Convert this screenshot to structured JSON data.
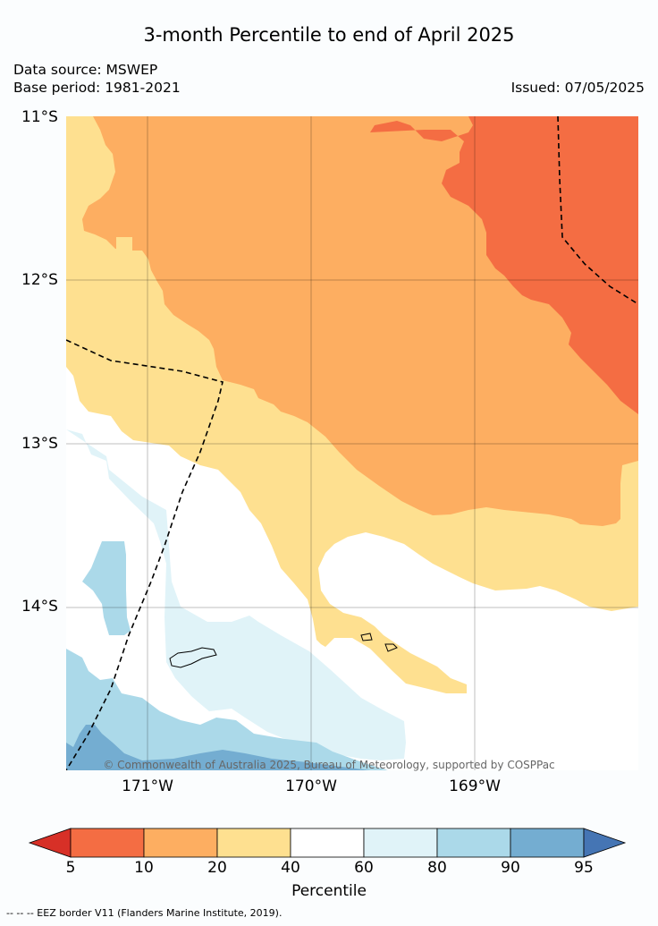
{
  "title": "3-month Percentile to end of April 2025",
  "source_line": "Data source: MSWEP",
  "base_period_line": "Base period: 1981-2021",
  "issued_line": "Issued: 07/05/2025",
  "latitude_labels": [
    "11°S",
    "12°S",
    "13°S",
    "14°S"
  ],
  "longitude_labels": [
    "171°W",
    "170°W",
    "169°W"
  ],
  "copyright": "© Commonwealth of Australia 2025, Bureau of Meteorology, supported by COSPPac",
  "colorbar": {
    "label": "Percentile",
    "ticks": [
      "5",
      "10",
      "20",
      "40",
      "60",
      "80",
      "90",
      "95"
    ],
    "colors": [
      "#d73027",
      "#f46d43",
      "#fdae61",
      "#fee090",
      "#ffffff",
      "#e0f3f8",
      "#abd9e9",
      "#74add1",
      "#4575b4"
    ]
  },
  "footnote": "-- -- -- EEZ border V11 (Flanders Marine Institute, 2019).",
  "map_colors": {
    "p5_10": "#f46d43",
    "p10_20": "#fdae61",
    "p20_40": "#fee090",
    "p40_60": "#ffffff",
    "p60_80": "#e0f3f8",
    "p80_90": "#abd9e9",
    "p90_95": "#74add1"
  }
}
